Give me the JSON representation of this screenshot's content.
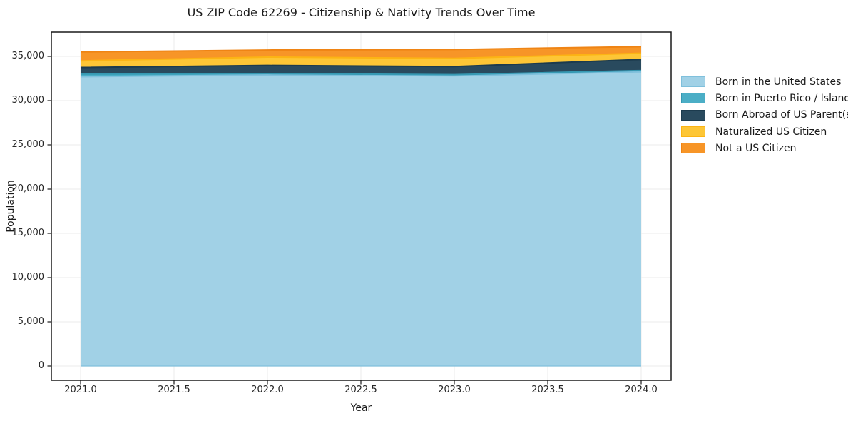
{
  "title": "US ZIP Code 62269 - Citizenship & Nativity Trends Over Time",
  "axes": {
    "x_label": "Year",
    "y_label": "Population",
    "x_ticks": [
      {
        "label": "2021.0",
        "value": 2021.0
      },
      {
        "label": "2021.5",
        "value": 2021.5
      },
      {
        "label": "2022.0",
        "value": 2022.0
      },
      {
        "label": "2022.5",
        "value": 2022.5
      },
      {
        "label": "2023.0",
        "value": 2023.0
      },
      {
        "label": "2023.5",
        "value": 2023.5
      },
      {
        "label": "2024.0",
        "value": 2024.0
      }
    ],
    "y_ticks": [
      {
        "label": "0",
        "value": 0
      },
      {
        "label": "5,000",
        "value": 5000
      },
      {
        "label": "10,000",
        "value": 10000
      },
      {
        "label": "15,000",
        "value": 15000
      },
      {
        "label": "20,000",
        "value": 20000
      },
      {
        "label": "25,000",
        "value": 25000
      },
      {
        "label": "30,000",
        "value": 30000
      },
      {
        "label": "35,000",
        "value": 35000
      }
    ]
  },
  "colors": {
    "grid": "#EBEBEB",
    "spine": "#1a1a1a",
    "tick": "#1a1a1a",
    "background": "#ffffff"
  },
  "chart_data": {
    "type": "area",
    "stacked": true,
    "title": "US ZIP Code 62269 - Citizenship & Nativity Trends Over Time",
    "xlabel": "Year",
    "ylabel": "Population",
    "x": [
      2021,
      2022,
      2023,
      2024
    ],
    "series": [
      {
        "name": "Born in the United States",
        "values": [
          32700,
          32900,
          32800,
          33250
        ],
        "fill": "#A1D1E6",
        "edge": "#7FC0DC"
      },
      {
        "name": "Born in Puerto Rico / Islands",
        "values": [
          300,
          150,
          130,
          150
        ],
        "fill": "#4BAEC6",
        "edge": "#3699B3"
      },
      {
        "name": "Born Abroad of US Parent(s)",
        "values": [
          750,
          930,
          920,
          1250
        ],
        "fill": "#294A5E",
        "edge": "#1C3B4E"
      },
      {
        "name": "Naturalized US Citizen",
        "values": [
          750,
          940,
          930,
          700
        ],
        "fill": "#FDC636",
        "edge": "#FCB414"
      },
      {
        "name": "Not a US Citizen",
        "values": [
          1000,
          800,
          1000,
          750
        ],
        "fill": "#F79527",
        "edge": "#EF8414"
      }
    ],
    "stack_totals": [
      35500,
      35720,
      35780,
      36100
    ],
    "xlim": [
      2020.84,
      2024.16
    ],
    "ylim": [
      -1600,
      37750
    ],
    "grid": true,
    "legend_position": "right"
  }
}
